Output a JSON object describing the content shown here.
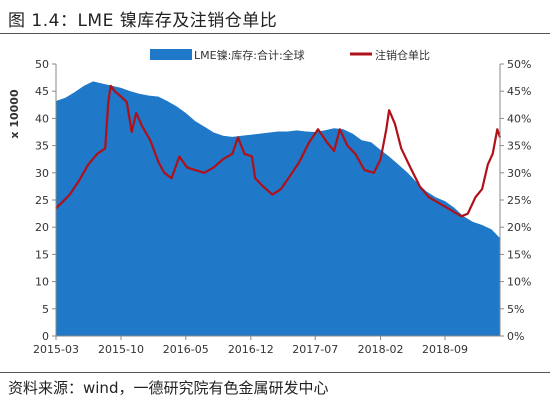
{
  "figure_title": "图 1.4：LME 镍库存及注销仓单比",
  "source_note": "资料来源：wind，一德研究院有色金属研发中心",
  "chart_data": {
    "type": "area",
    "y_unit_label": "x 10000",
    "legend": [
      {
        "key": "stock",
        "label": "LME镍:库存:合计:全球",
        "color": "#1f78c8"
      },
      {
        "key": "ratio",
        "label": "注销仓单比",
        "color": "#b01018"
      }
    ],
    "x_range": [
      "2015-03",
      "2019-03"
    ],
    "x_ticks": [
      "2015-03",
      "2015-10",
      "2016-05",
      "2016-12",
      "2017-07",
      "2018-02",
      "2018-09"
    ],
    "y_left": {
      "min": 0,
      "max": 50,
      "ticks": [
        "0",
        "5",
        "10",
        "15",
        "20",
        "25",
        "30",
        "35",
        "40",
        "45",
        "50"
      ]
    },
    "y_right": {
      "min": 0,
      "max": 50,
      "ticks": [
        "0%",
        "5%",
        "10%",
        "15%",
        "20%",
        "25%",
        "30%",
        "35%",
        "40%",
        "45%",
        "50%"
      ]
    },
    "stock": [
      [
        "2015-03-01",
        43.2
      ],
      [
        "2015-04-01",
        43.8
      ],
      [
        "2015-05-01",
        44.8
      ],
      [
        "2015-06-01",
        46.0
      ],
      [
        "2015-07-01",
        46.8
      ],
      [
        "2015-08-01",
        46.4
      ],
      [
        "2015-09-01",
        46.0
      ],
      [
        "2015-10-01",
        45.6
      ],
      [
        "2015-11-01",
        45.0
      ],
      [
        "2015-12-01",
        44.5
      ],
      [
        "2016-01-01",
        44.2
      ],
      [
        "2016-02-01",
        44.0
      ],
      [
        "2016-03-01",
        43.2
      ],
      [
        "2016-04-01",
        42.2
      ],
      [
        "2016-05-01",
        41.0
      ],
      [
        "2016-06-01",
        39.5
      ],
      [
        "2016-07-01",
        38.5
      ],
      [
        "2016-08-01",
        37.4
      ],
      [
        "2016-09-01",
        36.8
      ],
      [
        "2016-10-01",
        36.6
      ],
      [
        "2016-11-01",
        36.8
      ],
      [
        "2016-12-01",
        37.0
      ],
      [
        "2017-01-01",
        37.2
      ],
      [
        "2017-02-01",
        37.4
      ],
      [
        "2017-03-01",
        37.6
      ],
      [
        "2017-04-01",
        37.6
      ],
      [
        "2017-05-01",
        37.8
      ],
      [
        "2017-06-01",
        37.6
      ],
      [
        "2017-07-01",
        37.5
      ],
      [
        "2017-08-01",
        37.8
      ],
      [
        "2017-09-01",
        38.2
      ],
      [
        "2017-10-01",
        38.0
      ],
      [
        "2017-11-01",
        37.2
      ],
      [
        "2017-12-01",
        36.0
      ],
      [
        "2018-01-01",
        35.6
      ],
      [
        "2018-02-01",
        34.2
      ],
      [
        "2018-03-01",
        33.0
      ],
      [
        "2018-04-01",
        31.5
      ],
      [
        "2018-05-01",
        30.0
      ],
      [
        "2018-06-01",
        28.2
      ],
      [
        "2018-07-01",
        26.6
      ],
      [
        "2018-08-01",
        25.5
      ],
      [
        "2018-09-01",
        24.8
      ],
      [
        "2018-10-01",
        23.6
      ],
      [
        "2018-11-01",
        22.0
      ],
      [
        "2018-12-01",
        21.0
      ],
      [
        "2019-01-01",
        20.4
      ],
      [
        "2019-02-01",
        19.6
      ],
      [
        "2019-03-01",
        18.0
      ]
    ],
    "ratio": [
      [
        "2015-03-01",
        23.5
      ],
      [
        "2015-03-20",
        24.5
      ],
      [
        "2015-04-15",
        26.0
      ],
      [
        "2015-05-15",
        28.5
      ],
      [
        "2015-06-15",
        31.5
      ],
      [
        "2015-07-15",
        33.5
      ],
      [
        "2015-08-10",
        34.5
      ],
      [
        "2015-08-20",
        43.0
      ],
      [
        "2015-08-28",
        46.0
      ],
      [
        "2015-09-10",
        45.0
      ],
      [
        "2015-10-01",
        44.0
      ],
      [
        "2015-10-20",
        43.0
      ],
      [
        "2015-11-05",
        37.5
      ],
      [
        "2015-11-20",
        41.0
      ],
      [
        "2015-12-10",
        38.5
      ],
      [
        "2016-01-05",
        36.0
      ],
      [
        "2016-02-01",
        32.0
      ],
      [
        "2016-02-20",
        30.0
      ],
      [
        "2016-03-15",
        29.0
      ],
      [
        "2016-04-10",
        33.0
      ],
      [
        "2016-05-05",
        31.0
      ],
      [
        "2016-06-01",
        30.5
      ],
      [
        "2016-07-01",
        30.0
      ],
      [
        "2016-08-01",
        31.0
      ],
      [
        "2016-09-01",
        32.5
      ],
      [
        "2016-10-01",
        33.5
      ],
      [
        "2016-10-20",
        36.5
      ],
      [
        "2016-11-10",
        33.5
      ],
      [
        "2016-12-05",
        33.0
      ],
      [
        "2016-12-15",
        29.0
      ],
      [
        "2017-01-10",
        27.5
      ],
      [
        "2017-02-10",
        26.0
      ],
      [
        "2017-03-10",
        27.0
      ],
      [
        "2017-04-10",
        29.5
      ],
      [
        "2017-05-10",
        32.0
      ],
      [
        "2017-06-10",
        35.5
      ],
      [
        "2017-07-10",
        38.0
      ],
      [
        "2017-08-10",
        35.5
      ],
      [
        "2017-09-01",
        34.0
      ],
      [
        "2017-09-20",
        38.0
      ],
      [
        "2017-10-15",
        35.0
      ],
      [
        "2017-11-10",
        33.5
      ],
      [
        "2017-12-10",
        30.5
      ],
      [
        "2018-01-10",
        30.0
      ],
      [
        "2018-02-01",
        32.5
      ],
      [
        "2018-02-20",
        38.0
      ],
      [
        "2018-03-01",
        41.5
      ],
      [
        "2018-03-20",
        39.0
      ],
      [
        "2018-04-10",
        34.5
      ],
      [
        "2018-05-10",
        31.0
      ],
      [
        "2018-06-10",
        27.5
      ],
      [
        "2018-07-10",
        25.5
      ],
      [
        "2018-08-10",
        24.5
      ],
      [
        "2018-09-10",
        23.5
      ],
      [
        "2018-10-10",
        22.5
      ],
      [
        "2018-10-25",
        22.0
      ],
      [
        "2018-11-15",
        22.5
      ],
      [
        "2018-12-10",
        25.5
      ],
      [
        "2019-01-01",
        27.0
      ],
      [
        "2019-01-20",
        31.5
      ],
      [
        "2019-02-05",
        33.5
      ],
      [
        "2019-02-20",
        38.0
      ],
      [
        "2019-03-01",
        36.5
      ]
    ]
  }
}
